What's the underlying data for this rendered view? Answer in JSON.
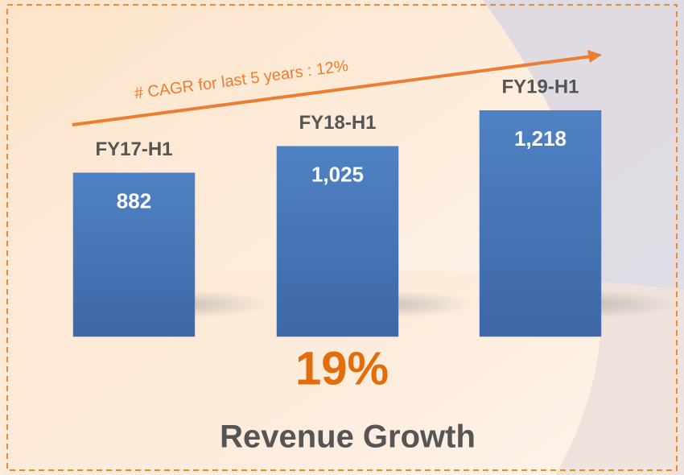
{
  "chart_data": {
    "type": "bar",
    "categories": [
      "FY17-H1",
      "FY18-H1",
      "FY19-H1"
    ],
    "values": [
      882,
      1025,
      1218
    ],
    "value_labels": [
      "882",
      "1,025",
      "1,218"
    ],
    "color": "#4a7cc0",
    "annotation": "# CAGR for last 5 years  : 12%",
    "headline": "19%",
    "caption": "Revenue Growth"
  }
}
